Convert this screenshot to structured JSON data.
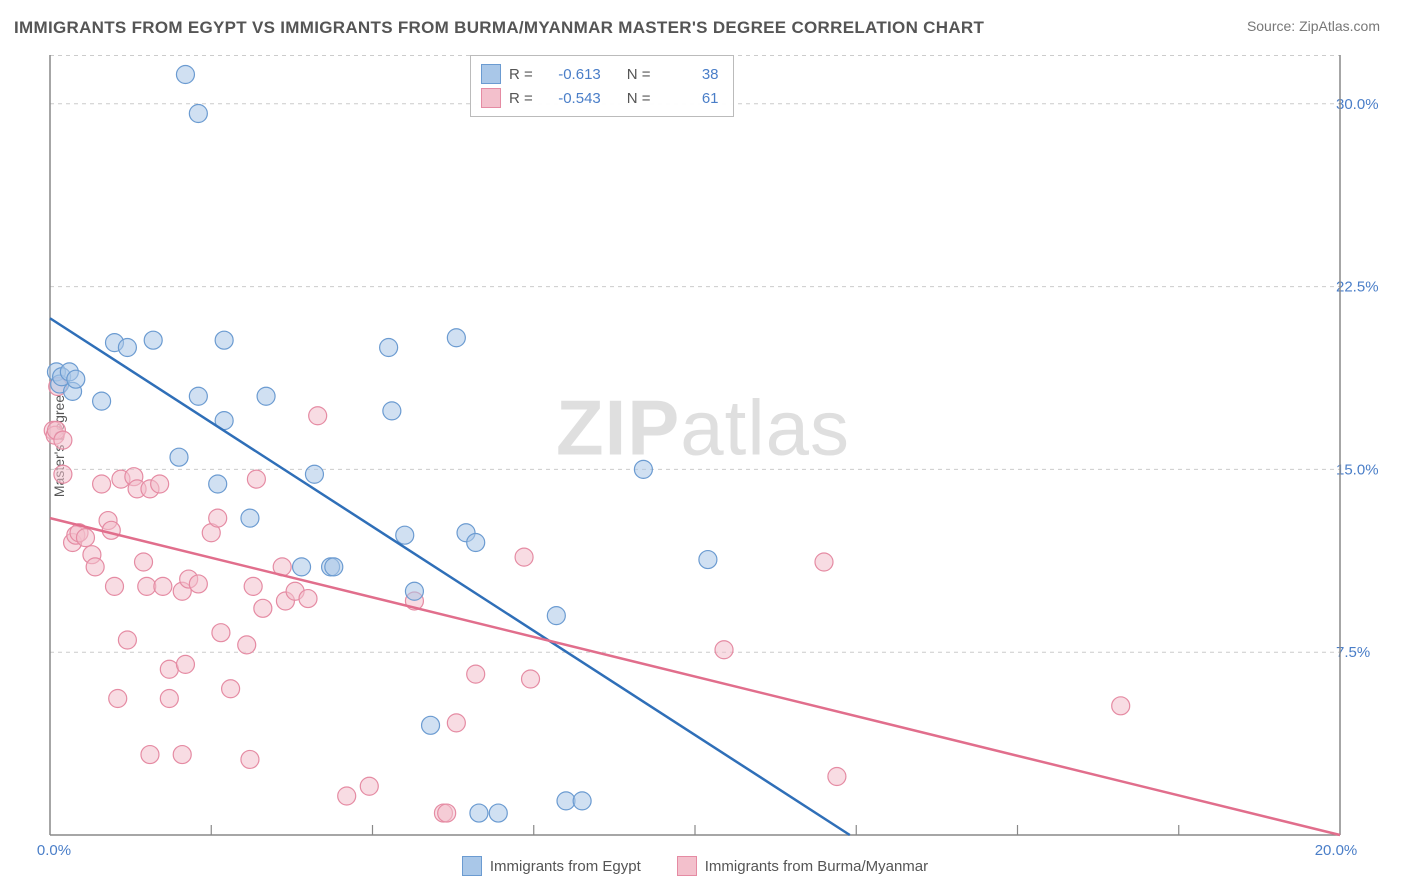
{
  "title": "IMMIGRANTS FROM EGYPT VS IMMIGRANTS FROM BURMA/MYANMAR MASTER'S DEGREE CORRELATION CHART",
  "source": "Source: ZipAtlas.com",
  "watermark_bold": "ZIP",
  "watermark_rest": "atlas",
  "y_axis_title": "Master's Degree",
  "chart": {
    "type": "scatter",
    "background_color": "#ffffff",
    "grid_color": "#cccccc",
    "axis_color": "#888888",
    "xlim": [
      0,
      20
    ],
    "ylim": [
      0,
      32
    ],
    "x_ticks": [
      0,
      20
    ],
    "x_tick_labels": [
      "0.0%",
      "20.0%"
    ],
    "y_ticks": [
      7.5,
      15.0,
      22.5,
      30.0
    ],
    "y_tick_labels": [
      "7.5%",
      "15.0%",
      "22.5%",
      "30.0%"
    ],
    "marker_radius": 9,
    "marker_opacity": 0.55,
    "line_width": 2.5,
    "series": [
      {
        "id": "egypt",
        "label": "Immigrants from Egypt",
        "color_fill": "#a9c7e8",
        "color_stroke": "#6b9bd1",
        "line_color": "#2f6fb8",
        "r": "-0.613",
        "n": "38",
        "trend": {
          "x1": 0,
          "y1": 21.2,
          "x2": 12.4,
          "y2": 0
        },
        "points": [
          [
            0.1,
            19.0
          ],
          [
            0.15,
            18.5
          ],
          [
            0.18,
            18.8
          ],
          [
            0.3,
            19.0
          ],
          [
            0.35,
            18.2
          ],
          [
            0.4,
            18.7
          ],
          [
            0.8,
            17.8
          ],
          [
            1.0,
            20.2
          ],
          [
            1.2,
            20.0
          ],
          [
            2.1,
            31.2
          ],
          [
            2.3,
            29.6
          ],
          [
            1.6,
            20.3
          ],
          [
            2.3,
            18.0
          ],
          [
            2.0,
            15.5
          ],
          [
            2.6,
            14.4
          ],
          [
            2.7,
            20.3
          ],
          [
            2.7,
            17.0
          ],
          [
            3.1,
            13.0
          ],
          [
            3.35,
            18.0
          ],
          [
            3.9,
            11.0
          ],
          [
            4.1,
            14.8
          ],
          [
            4.35,
            11.0
          ],
          [
            4.4,
            11.0
          ],
          [
            5.25,
            20.0
          ],
          [
            5.3,
            17.4
          ],
          [
            5.5,
            12.3
          ],
          [
            5.65,
            10.0
          ],
          [
            5.9,
            4.5
          ],
          [
            6.3,
            20.4
          ],
          [
            6.45,
            12.4
          ],
          [
            6.6,
            12.0
          ],
          [
            6.65,
            0.9
          ],
          [
            6.95,
            0.9
          ],
          [
            7.85,
            9.0
          ],
          [
            8.0,
            1.4
          ],
          [
            8.25,
            1.4
          ],
          [
            9.2,
            15.0
          ],
          [
            10.2,
            11.3
          ]
        ]
      },
      {
        "id": "burma",
        "label": "Immigrants from Burma/Myanmar",
        "color_fill": "#f3c0cc",
        "color_stroke": "#e58ba3",
        "line_color": "#e16e8c",
        "r": "-0.543",
        "n": "61",
        "trend": {
          "x1": 0,
          "y1": 13.0,
          "x2": 20,
          "y2": 0
        },
        "points": [
          [
            0.05,
            16.6
          ],
          [
            0.08,
            16.4
          ],
          [
            0.1,
            16.6
          ],
          [
            0.12,
            18.4
          ],
          [
            0.2,
            16.2
          ],
          [
            0.2,
            14.8
          ],
          [
            0.35,
            12.0
          ],
          [
            0.4,
            12.3
          ],
          [
            0.45,
            12.4
          ],
          [
            0.55,
            12.2
          ],
          [
            0.65,
            11.5
          ],
          [
            0.7,
            11.0
          ],
          [
            0.8,
            14.4
          ],
          [
            0.9,
            12.9
          ],
          [
            0.95,
            12.5
          ],
          [
            1.0,
            10.2
          ],
          [
            1.05,
            5.6
          ],
          [
            1.1,
            14.6
          ],
          [
            1.2,
            8.0
          ],
          [
            1.3,
            14.7
          ],
          [
            1.35,
            14.2
          ],
          [
            1.45,
            11.2
          ],
          [
            1.5,
            10.2
          ],
          [
            1.55,
            14.2
          ],
          [
            1.55,
            3.3
          ],
          [
            1.7,
            14.4
          ],
          [
            1.75,
            10.2
          ],
          [
            1.85,
            5.6
          ],
          [
            1.85,
            6.8
          ],
          [
            2.05,
            3.3
          ],
          [
            2.05,
            10.0
          ],
          [
            2.1,
            7.0
          ],
          [
            2.15,
            10.5
          ],
          [
            2.3,
            10.3
          ],
          [
            2.5,
            12.4
          ],
          [
            2.6,
            13.0
          ],
          [
            2.65,
            8.3
          ],
          [
            2.8,
            6.0
          ],
          [
            3.05,
            7.8
          ],
          [
            3.1,
            3.1
          ],
          [
            3.15,
            10.2
          ],
          [
            3.2,
            14.6
          ],
          [
            3.3,
            9.3
          ],
          [
            3.6,
            11.0
          ],
          [
            3.65,
            9.6
          ],
          [
            3.8,
            10.0
          ],
          [
            4.0,
            9.7
          ],
          [
            4.15,
            17.2
          ],
          [
            4.6,
            1.6
          ],
          [
            4.95,
            2.0
          ],
          [
            5.65,
            9.6
          ],
          [
            6.1,
            0.9
          ],
          [
            6.15,
            0.9
          ],
          [
            6.3,
            4.6
          ],
          [
            6.6,
            6.6
          ],
          [
            7.35,
            11.4
          ],
          [
            7.45,
            6.4
          ],
          [
            10.45,
            7.6
          ],
          [
            12.0,
            11.2
          ],
          [
            12.2,
            2.4
          ],
          [
            16.6,
            5.3
          ]
        ]
      }
    ]
  },
  "legend_labels": {
    "r": "R =",
    "n": "N ="
  }
}
